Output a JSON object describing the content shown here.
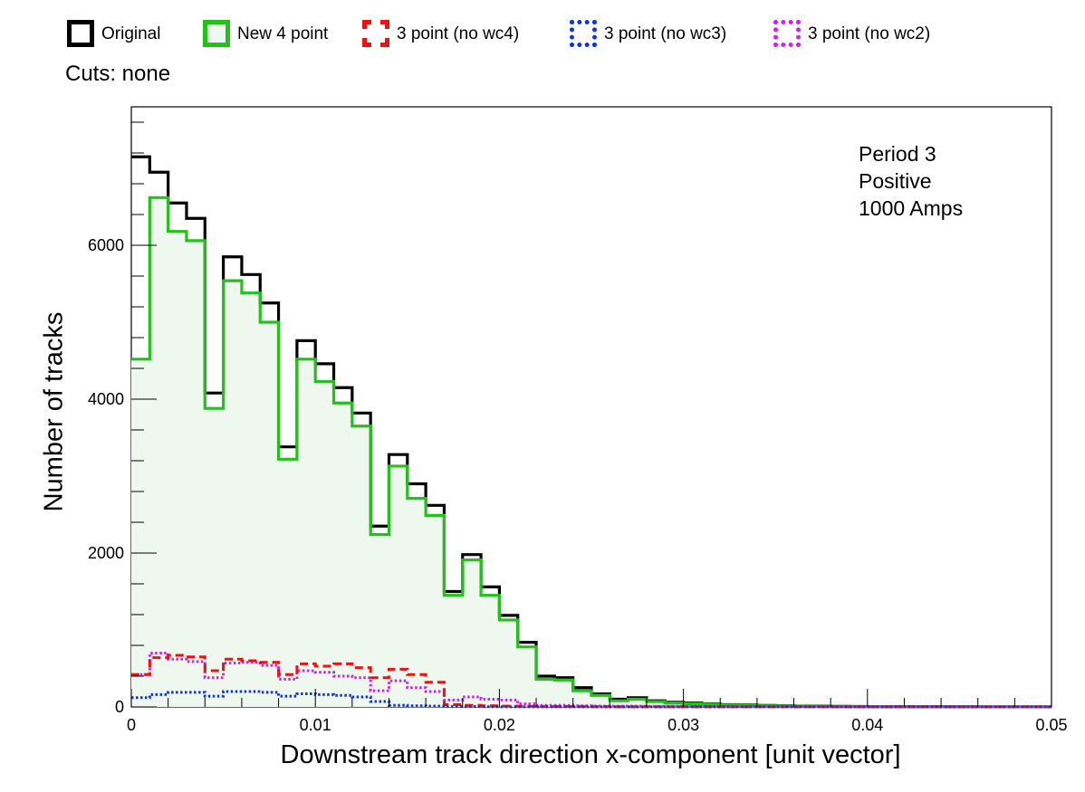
{
  "legend": [
    {
      "name": "Original",
      "color": "#000000",
      "style": "solid"
    },
    {
      "name": "New 4 point",
      "color": "#22c21b",
      "style": "solid"
    },
    {
      "name": "3 point (no wc4)",
      "color": "#ee1111",
      "style": "dashed"
    },
    {
      "name": "3 point (no wc3)",
      "color": "#1133dd",
      "style": "dotted"
    },
    {
      "name": "3 point (no wc2)",
      "color": "#cc22ee",
      "style": "dotted"
    }
  ],
  "cuts_label": "Cuts: none",
  "annotation": {
    "line1": "Period 3",
    "line2": "Positive",
    "line3": "1000 Amps"
  },
  "chart_data": {
    "type": "histogram",
    "xlabel": "Downstream track direction x-component [unit vector]",
    "ylabel": "Number of tracks",
    "xlim": [
      0,
      0.05
    ],
    "ylim": [
      0,
      7800
    ],
    "x_ticks": [
      "0",
      "0.01",
      "0.02",
      "0.03",
      "0.04",
      "0.05"
    ],
    "y_ticks": [
      "0",
      "2000",
      "4000",
      "6000"
    ],
    "bin_width": 0.001,
    "series": [
      {
        "name": "Original",
        "color": "#000000",
        "style": "solid",
        "fill": false,
        "values": [
          7150,
          6950,
          6550,
          6350,
          4080,
          5850,
          5620,
          5250,
          3380,
          4760,
          4460,
          4150,
          3820,
          2350,
          3280,
          2900,
          2620,
          1500,
          1980,
          1560,
          1190,
          840,
          400,
          380,
          250,
          170,
          100,
          120,
          80,
          60,
          50,
          40,
          30,
          25,
          20,
          15,
          12,
          10,
          8,
          6,
          5,
          4,
          3,
          3,
          2,
          2,
          1,
          1,
          1,
          1
        ]
      },
      {
        "name": "New 4 point",
        "color": "#22c21b",
        "style": "solid",
        "fill": true,
        "fill_color": "#eef8ee",
        "values": [
          4520,
          6620,
          6180,
          6060,
          3880,
          5540,
          5380,
          5000,
          3220,
          4520,
          4230,
          3950,
          3650,
          2240,
          3130,
          2710,
          2490,
          1450,
          1910,
          1450,
          1130,
          780,
          360,
          350,
          210,
          150,
          80,
          100,
          70,
          50,
          40,
          35,
          25,
          20,
          15,
          12,
          10,
          8,
          6,
          5,
          4,
          3,
          3,
          2,
          2,
          1,
          1,
          1,
          1,
          1
        ]
      },
      {
        "name": "3 point (no wc4)",
        "color": "#ee1111",
        "style": "dashed",
        "fill": false,
        "values": [
          420,
          640,
          670,
          650,
          470,
          620,
          600,
          580,
          420,
          560,
          530,
          560,
          510,
          380,
          490,
          420,
          320,
          30,
          20,
          15,
          10,
          8,
          5,
          5,
          4,
          3,
          2,
          2,
          2,
          2,
          1,
          1,
          1,
          1,
          1,
          1,
          1,
          1,
          1,
          1,
          1,
          1,
          1,
          1,
          1,
          1,
          1,
          1,
          1,
          1
        ]
      },
      {
        "name": "3 point (no wc3)",
        "color": "#1133dd",
        "style": "dotted",
        "fill": false,
        "values": [
          120,
          160,
          190,
          190,
          140,
          200,
          200,
          190,
          140,
          170,
          160,
          150,
          130,
          70,
          20,
          15,
          10,
          5,
          5,
          3,
          2,
          2,
          2,
          2,
          2,
          2,
          2,
          2,
          2,
          2,
          2,
          2,
          2,
          2,
          2,
          2,
          2,
          2,
          2,
          2,
          2,
          2,
          2,
          2,
          2,
          2,
          2,
          2,
          2,
          2
        ]
      },
      {
        "name": "3 point (no wc2)",
        "color": "#cc22ee",
        "style": "dotted",
        "fill": false,
        "values": [
          420,
          700,
          620,
          590,
          380,
          570,
          580,
          540,
          360,
          470,
          450,
          400,
          380,
          210,
          340,
          250,
          200,
          90,
          130,
          100,
          90,
          40,
          20,
          20,
          15,
          10,
          10,
          10,
          8,
          8,
          6,
          6,
          5,
          5,
          5,
          4,
          4,
          4,
          3,
          3,
          3,
          3,
          3,
          3,
          3,
          3,
          3,
          3,
          3,
          3
        ]
      }
    ]
  }
}
